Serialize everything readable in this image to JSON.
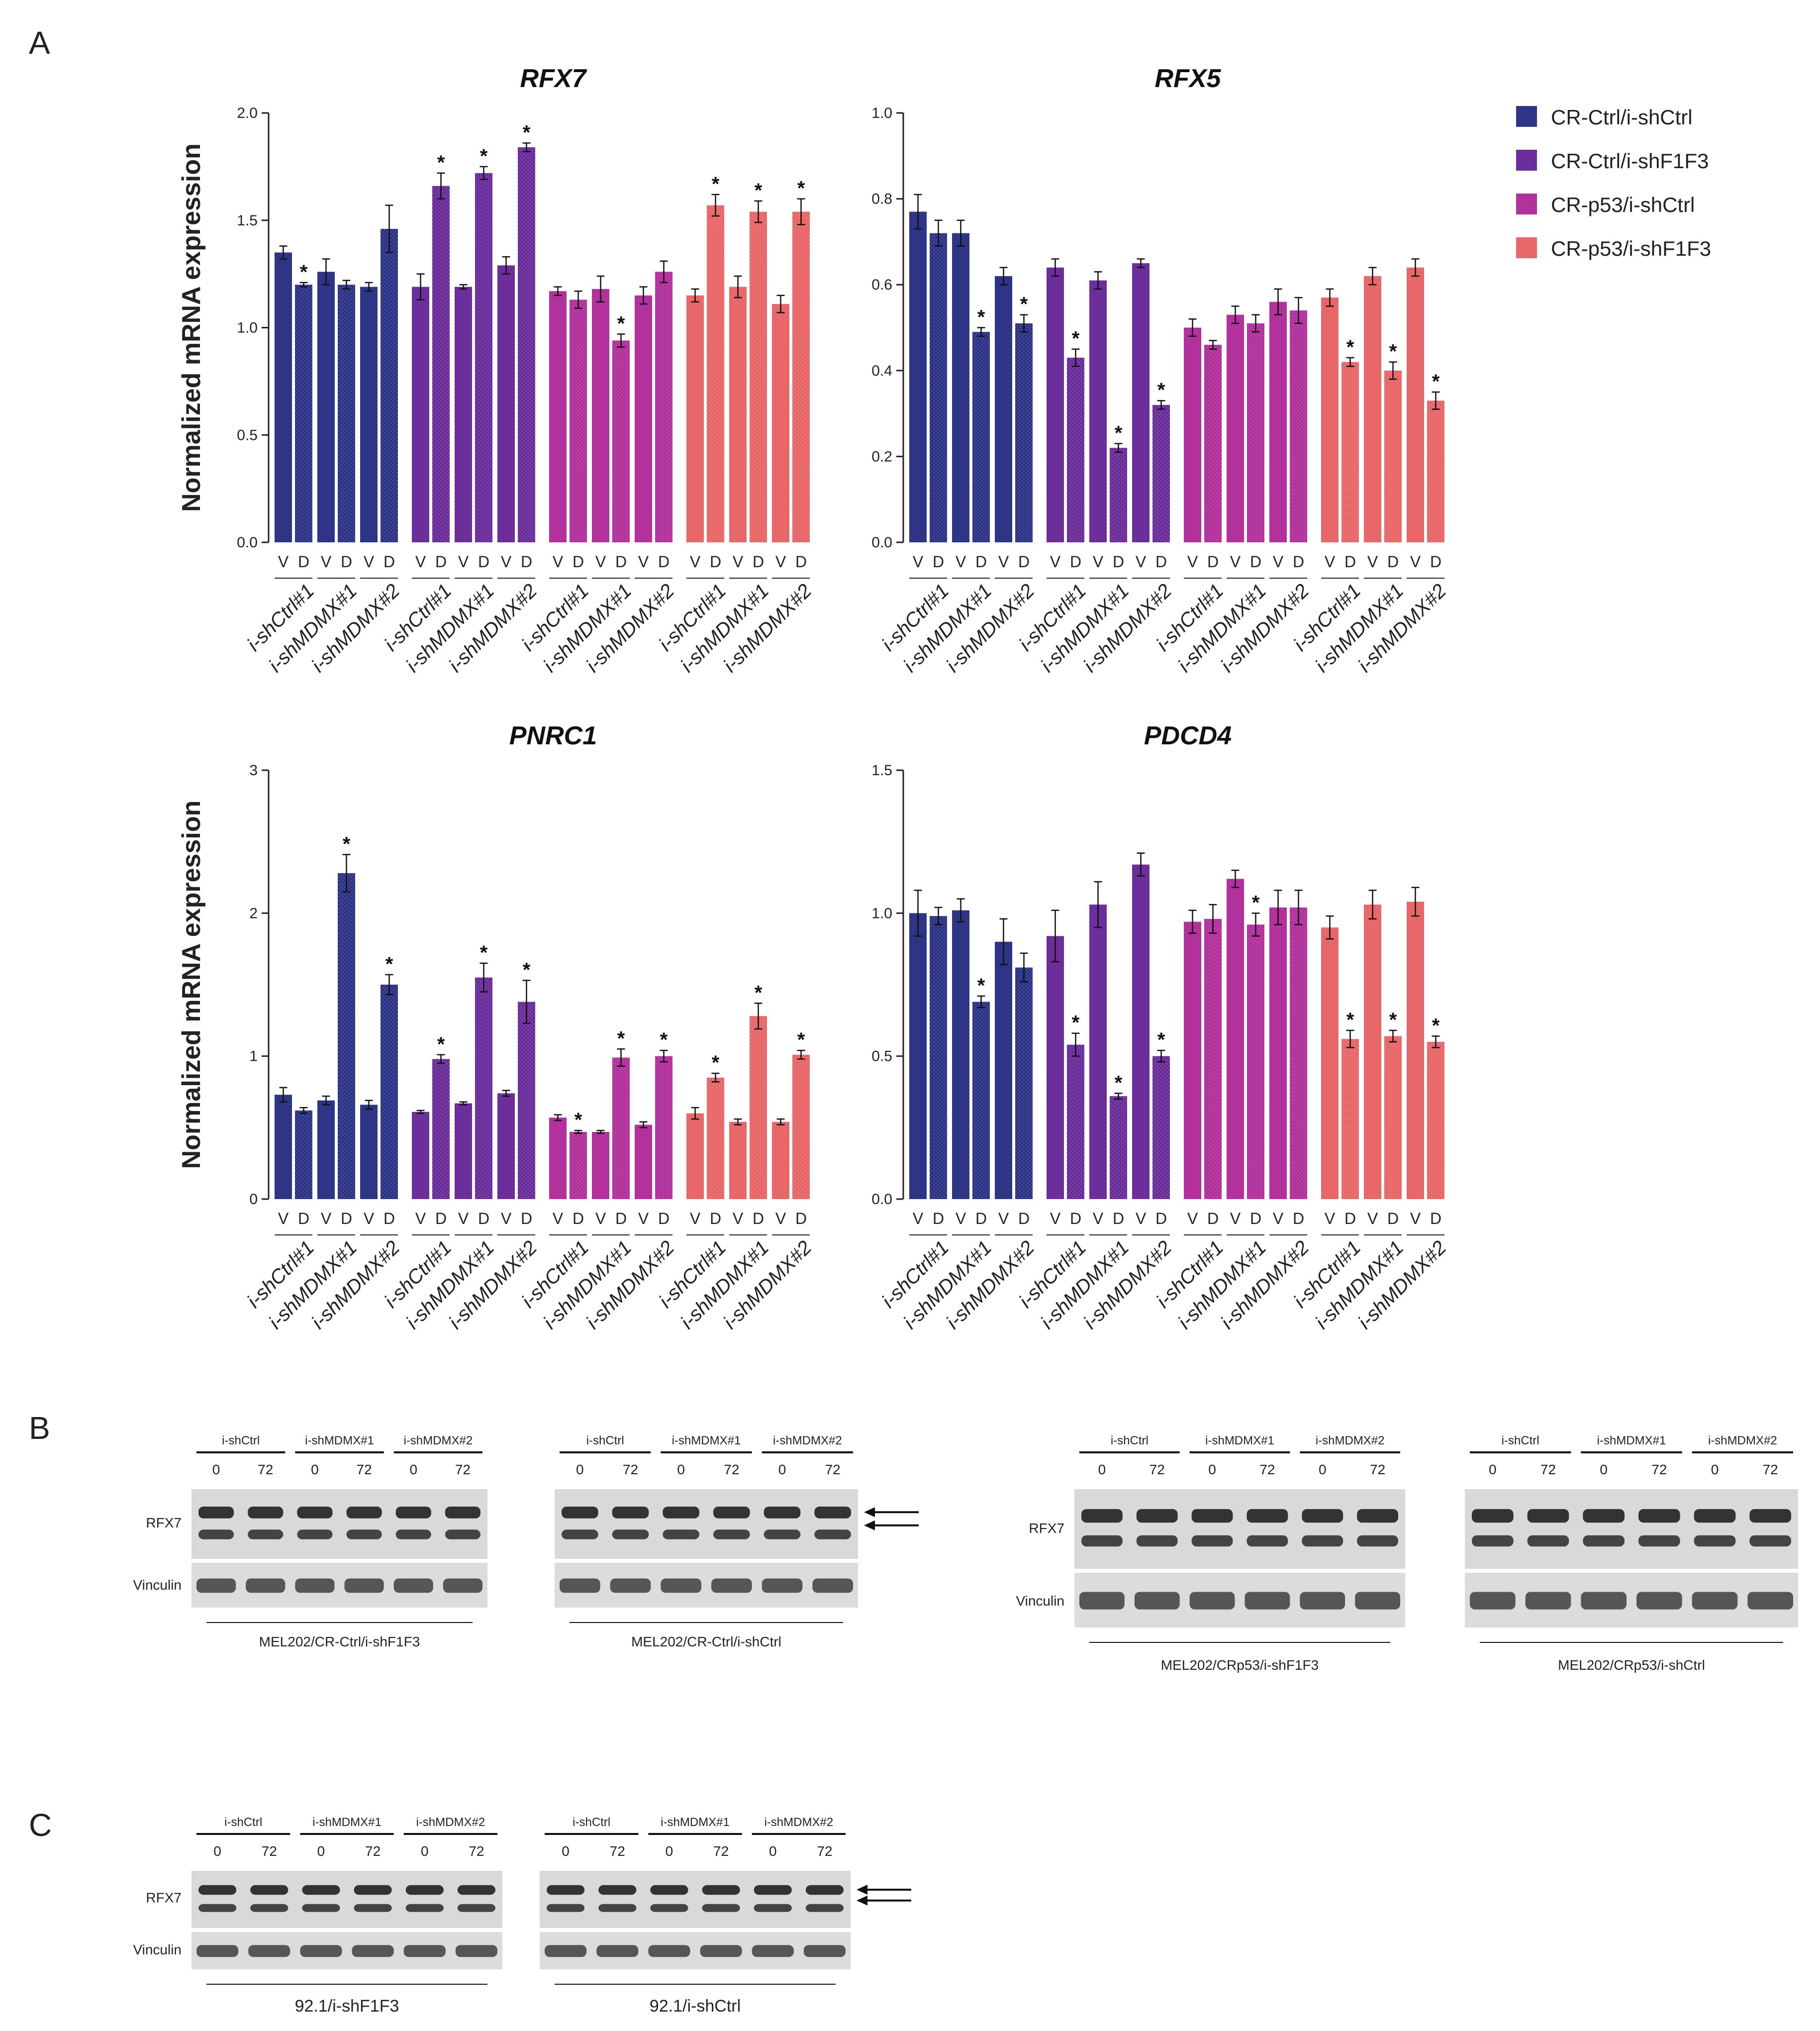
{
  "panels": {
    "A": "A",
    "B": "B",
    "C": "C"
  },
  "colors": {
    "ctrl_shctrl": "#2e3486",
    "ctrl_shf1f3": "#6c2e9b",
    "p53_shctrl": "#b3319c",
    "p53_shf1f3": "#e8686a"
  },
  "legend": [
    {
      "label": "CR-Ctrl/i-shCtrl",
      "color": "#2e3486"
    },
    {
      "label": "CR-Ctrl/i-shF1F3",
      "color": "#6c2e9b"
    },
    {
      "label": "CR-p53/i-shCtrl",
      "color": "#b3319c"
    },
    {
      "label": "CR-p53/i-shF1F3",
      "color": "#e8686a"
    }
  ],
  "y_axis_label": "Normalized mRNA expression",
  "vd_labels": [
    "V",
    "D"
  ],
  "significance_marker": "*",
  "chart_data": [
    {
      "type": "bar",
      "title": "RFX7",
      "ylabel": "Normalized mRNA expression",
      "ylim": [
        0,
        2.0
      ],
      "yticks": [
        "0.0",
        "0.5",
        "1.0",
        "1.5",
        "2.0"
      ],
      "group_labels": [
        "i-shCtrl#1",
        "i-shMDMX#1",
        "i-shMDMX#2",
        "i-shCtrl#1",
        "i-shMDMX#1",
        "i-shMDMX#2",
        "i-shCtrl#1",
        "i-shMDMX#1",
        "i-shMDMX#2",
        "i-shCtrl#1",
        "i-shMDMX#1",
        "i-shMDMX#2"
      ],
      "values": [
        1.35,
        1.2,
        1.26,
        1.2,
        1.19,
        1.46,
        1.19,
        1.66,
        1.19,
        1.72,
        1.29,
        1.84,
        1.17,
        1.13,
        1.18,
        0.94,
        1.15,
        1.26,
        1.15,
        1.57,
        1.19,
        1.54,
        1.11,
        1.54
      ],
      "errors": [
        0.03,
        0.01,
        0.06,
        0.02,
        0.02,
        0.11,
        0.06,
        0.06,
        0.01,
        0.03,
        0.04,
        0.02,
        0.02,
        0.04,
        0.06,
        0.03,
        0.04,
        0.05,
        0.03,
        0.05,
        0.05,
        0.05,
        0.04,
        0.06
      ],
      "significant": [
        0,
        1,
        0,
        0,
        0,
        0,
        0,
        1,
        0,
        1,
        0,
        1,
        0,
        0,
        0,
        1,
        0,
        0,
        0,
        1,
        0,
        1,
        0,
        1
      ]
    },
    {
      "type": "bar",
      "title": "RFX5",
      "ylabel": "",
      "ylim": [
        0,
        1.0
      ],
      "yticks": [
        "0.0",
        "0.2",
        "0.4",
        "0.6",
        "0.8",
        "1.0"
      ],
      "group_labels": [
        "i-shCtrl#1",
        "i-shMDMX#1",
        "i-shMDMX#2",
        "i-shCtrl#1",
        "i-shMDMX#1",
        "i-shMDMX#2",
        "i-shCtrl#1",
        "i-shMDMX#1",
        "i-shMDMX#2",
        "i-shCtrl#1",
        "i-shMDMX#1",
        "i-shMDMX#2"
      ],
      "values": [
        0.77,
        0.72,
        0.72,
        0.49,
        0.62,
        0.51,
        0.64,
        0.43,
        0.61,
        0.22,
        0.65,
        0.32,
        0.5,
        0.46,
        0.53,
        0.51,
        0.56,
        0.54,
        0.57,
        0.42,
        0.62,
        0.4,
        0.64,
        0.33
      ],
      "errors": [
        0.04,
        0.03,
        0.03,
        0.01,
        0.02,
        0.02,
        0.02,
        0.02,
        0.02,
        0.01,
        0.01,
        0.01,
        0.02,
        0.01,
        0.02,
        0.02,
        0.03,
        0.03,
        0.02,
        0.01,
        0.02,
        0.02,
        0.02,
        0.02
      ],
      "significant": [
        0,
        0,
        0,
        1,
        0,
        1,
        0,
        1,
        0,
        1,
        0,
        1,
        0,
        0,
        0,
        0,
        0,
        0,
        0,
        1,
        0,
        1,
        0,
        1
      ]
    },
    {
      "type": "bar",
      "title": "PNRC1",
      "ylabel": "Normalized mRNA expression",
      "ylim": [
        0,
        3
      ],
      "yticks": [
        "0",
        "1",
        "2",
        "3"
      ],
      "group_labels": [
        "i-shCtrl#1",
        "i-shMDMX#1",
        "i-shMDMX#2",
        "i-shCtrl#1",
        "i-shMDMX#1",
        "i-shMDMX#2",
        "i-shCtrl#1",
        "i-shMDMX#1",
        "i-shMDMX#2",
        "i-shCtrl#1",
        "i-shMDMX#1",
        "i-shMDMX#2"
      ],
      "values": [
        0.73,
        0.62,
        0.69,
        2.28,
        0.66,
        1.5,
        0.61,
        0.98,
        0.67,
        1.55,
        0.74,
        1.38,
        0.57,
        0.47,
        0.47,
        0.99,
        0.52,
        1.0,
        0.6,
        0.85,
        0.54,
        1.28,
        0.54,
        1.01
      ],
      "errors": [
        0.05,
        0.02,
        0.03,
        0.13,
        0.03,
        0.07,
        0.01,
        0.03,
        0.01,
        0.1,
        0.02,
        0.15,
        0.02,
        0.01,
        0.01,
        0.06,
        0.02,
        0.04,
        0.04,
        0.03,
        0.02,
        0.09,
        0.02,
        0.03
      ],
      "significant": [
        0,
        0,
        0,
        1,
        0,
        1,
        0,
        1,
        0,
        1,
        0,
        1,
        0,
        1,
        0,
        1,
        0,
        1,
        0,
        1,
        0,
        1,
        0,
        1
      ]
    },
    {
      "type": "bar",
      "title": "PDCD4",
      "ylabel": "",
      "ylim": [
        0,
        1.5
      ],
      "yticks": [
        "0.0",
        "0.5",
        "1.0",
        "1.5"
      ],
      "group_labels": [
        "i-shCtrl#1",
        "i-shMDMX#1",
        "i-shMDMX#2",
        "i-shCtrl#1",
        "i-shMDMX#1",
        "i-shMDMX#2",
        "i-shCtrl#1",
        "i-shMDMX#1",
        "i-shMDMX#2",
        "i-shCtrl#1",
        "i-shMDMX#1",
        "i-shMDMX#2"
      ],
      "values": [
        1.0,
        0.99,
        1.01,
        0.69,
        0.9,
        0.81,
        0.92,
        0.54,
        1.03,
        0.36,
        1.17,
        0.5,
        0.97,
        0.98,
        1.12,
        0.96,
        1.02,
        1.02,
        0.95,
        0.56,
        1.03,
        0.57,
        1.04,
        0.55
      ],
      "errors": [
        0.08,
        0.03,
        0.04,
        0.02,
        0.08,
        0.05,
        0.09,
        0.04,
        0.08,
        0.01,
        0.04,
        0.02,
        0.04,
        0.05,
        0.03,
        0.04,
        0.06,
        0.06,
        0.04,
        0.03,
        0.05,
        0.02,
        0.05,
        0.02
      ],
      "significant": [
        0,
        0,
        0,
        1,
        0,
        0,
        0,
        1,
        0,
        1,
        0,
        1,
        0,
        0,
        0,
        1,
        0,
        0,
        0,
        1,
        0,
        1,
        0,
        1
      ]
    }
  ],
  "blots_B": [
    {
      "groups": [
        "i-shCtrl",
        "i-shMDMX#1",
        "i-shMDMX#2"
      ],
      "times": [
        "0",
        "72",
        "0",
        "72",
        "0",
        "72"
      ],
      "proteins": [
        "RFX7",
        "Vinculin"
      ],
      "caption": "MEL202/CR-Ctrl/i-shF1F3",
      "arrows": false
    },
    {
      "groups": [
        "i-shCtrl",
        "i-shMDMX#1",
        "i-shMDMX#2"
      ],
      "times": [
        "0",
        "72",
        "0",
        "72",
        "0",
        "72"
      ],
      "proteins": [],
      "caption": "MEL202/CR-Ctrl/i-shCtrl",
      "arrows": true
    },
    {
      "groups": [
        "i-shCtrl",
        "i-shMDMX#1",
        "i-shMDMX#2"
      ],
      "times": [
        "0",
        "72",
        "0",
        "72",
        "0",
        "72"
      ],
      "proteins": [
        "RFX7",
        "Vinculin"
      ],
      "caption": "MEL202/CRp53/i-shF1F3",
      "arrows": false
    },
    {
      "groups": [
        "i-shCtrl",
        "i-shMDMX#1",
        "i-shMDMX#2"
      ],
      "times": [
        "0",
        "72",
        "0",
        "72",
        "0",
        "72"
      ],
      "proteins": [],
      "caption": "MEL202/CRp53/i-shCtrl",
      "arrows": false
    }
  ],
  "blots_C": [
    {
      "groups": [
        "i-shCtrl",
        "i-shMDMX#1",
        "i-shMDMX#2"
      ],
      "times": [
        "0",
        "72",
        "0",
        "72",
        "0",
        "72"
      ],
      "proteins": [
        "RFX7",
        "Vinculin"
      ],
      "caption": "92.1/i-shF1F3",
      "arrows": false
    },
    {
      "groups": [
        "i-shCtrl",
        "i-shMDMX#1",
        "i-shMDMX#2"
      ],
      "times": [
        "0",
        "72",
        "0",
        "72",
        "0",
        "72"
      ],
      "proteins": [],
      "caption": "92.1/i-shCtrl",
      "arrows": true
    }
  ]
}
